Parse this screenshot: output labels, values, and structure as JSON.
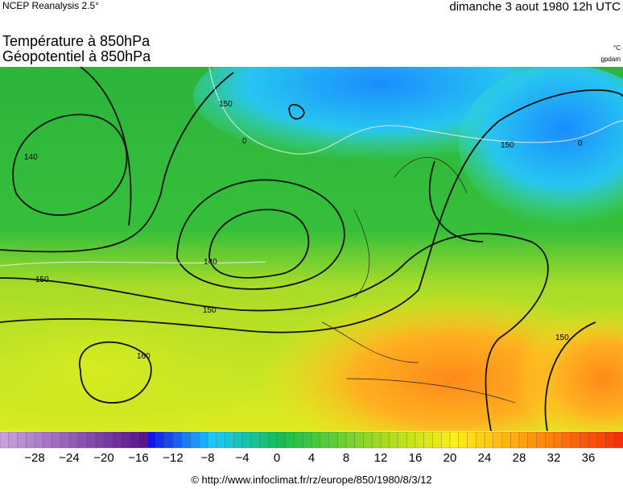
{
  "header": {
    "source": "NCEP Reanalysis 2.5°",
    "date": "dimanche 3 aout 1980 12h UTC"
  },
  "titles": [
    "Température à 850hPa",
    "Géopotentiel à 850hPa"
  ],
  "units": [
    "°C",
    "gpdam"
  ],
  "map": {
    "contour_labels": [
      "150",
      "140",
      "150",
      "140",
      "150",
      "160",
      "150",
      "0",
      "0",
      "150"
    ]
  },
  "colorbar": {
    "labels": [
      "−28",
      "−24",
      "−20",
      "−16",
      "−12",
      "−8",
      "−4",
      "0",
      "4",
      "8",
      "12",
      "16",
      "20",
      "24",
      "28",
      "32",
      "36"
    ]
  },
  "footer": "© http://www.infoclimat.fr/rz/europe/850/1980/8/3/12"
}
